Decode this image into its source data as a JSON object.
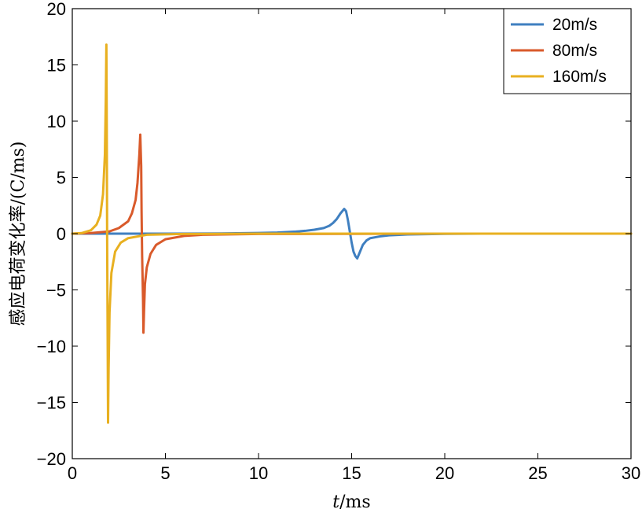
{
  "chart_data": {
    "type": "line",
    "xlabel_var": "t",
    "xlabel_unit": "/ms",
    "ylabel": "感应电荷变化率/(C/ms)",
    "xlim": [
      0,
      30
    ],
    "ylim": [
      -20,
      20
    ],
    "xticks": [
      0,
      5,
      10,
      15,
      20,
      25,
      30
    ],
    "yticks": [
      -20,
      -15,
      -10,
      -5,
      0,
      5,
      10,
      15,
      20
    ],
    "grid": false,
    "legend_position": "top-right",
    "series": [
      {
        "name": "20m/s",
        "color": "#3f7fc0",
        "x": [
          0,
          5,
          8,
          10,
          11,
          12,
          12.5,
          13,
          13.5,
          13.8,
          14.0,
          14.2,
          14.4,
          14.6,
          14.7,
          14.8,
          14.9,
          15.0,
          15.1,
          15.2,
          15.3,
          15.4,
          15.6,
          15.8,
          16.0,
          16.5,
          17,
          18,
          19,
          20,
          22,
          25,
          30
        ],
        "y": [
          0,
          0,
          0.02,
          0.06,
          0.1,
          0.18,
          0.25,
          0.35,
          0.5,
          0.7,
          0.95,
          1.3,
          1.8,
          2.2,
          2.0,
          1.2,
          0.2,
          -0.8,
          -1.6,
          -2.0,
          -2.2,
          -1.8,
          -1.0,
          -0.6,
          -0.4,
          -0.25,
          -0.15,
          -0.07,
          -0.04,
          -0.02,
          0,
          0,
          0
        ]
      },
      {
        "name": "80m/s",
        "color": "#d95a2b",
        "x": [
          0,
          1,
          2,
          2.5,
          3.0,
          3.2,
          3.4,
          3.5,
          3.6,
          3.65,
          3.7,
          3.72,
          3.75,
          3.8,
          3.82,
          3.85,
          3.9,
          4.0,
          4.2,
          4.5,
          5,
          6,
          7,
          10,
          20,
          30
        ],
        "y": [
          0,
          0.05,
          0.2,
          0.5,
          1.1,
          1.8,
          3.0,
          4.5,
          7.0,
          8.8,
          6.0,
          2.0,
          -2.0,
          -6.0,
          -8.8,
          -7.0,
          -4.5,
          -3.0,
          -1.8,
          -1.0,
          -0.5,
          -0.2,
          -0.1,
          -0.03,
          0,
          0
        ]
      },
      {
        "name": "160m/s",
        "color": "#e8b020",
        "x": [
          0,
          0.5,
          1.0,
          1.3,
          1.5,
          1.65,
          1.75,
          1.8,
          1.83,
          1.85,
          1.87,
          1.9,
          1.92,
          1.95,
          2.0,
          2.1,
          2.3,
          2.6,
          3.0,
          4.0,
          6.0,
          10,
          20,
          30
        ],
        "y": [
          0,
          0.05,
          0.3,
          0.8,
          1.6,
          3.5,
          7.0,
          12.0,
          16.8,
          10.0,
          0,
          -10.0,
          -16.8,
          -12.0,
          -7.0,
          -3.5,
          -1.6,
          -0.8,
          -0.4,
          -0.1,
          -0.03,
          0,
          0,
          0
        ]
      }
    ]
  },
  "colors": {
    "axis": "#000000",
    "background": "#ffffff"
  }
}
